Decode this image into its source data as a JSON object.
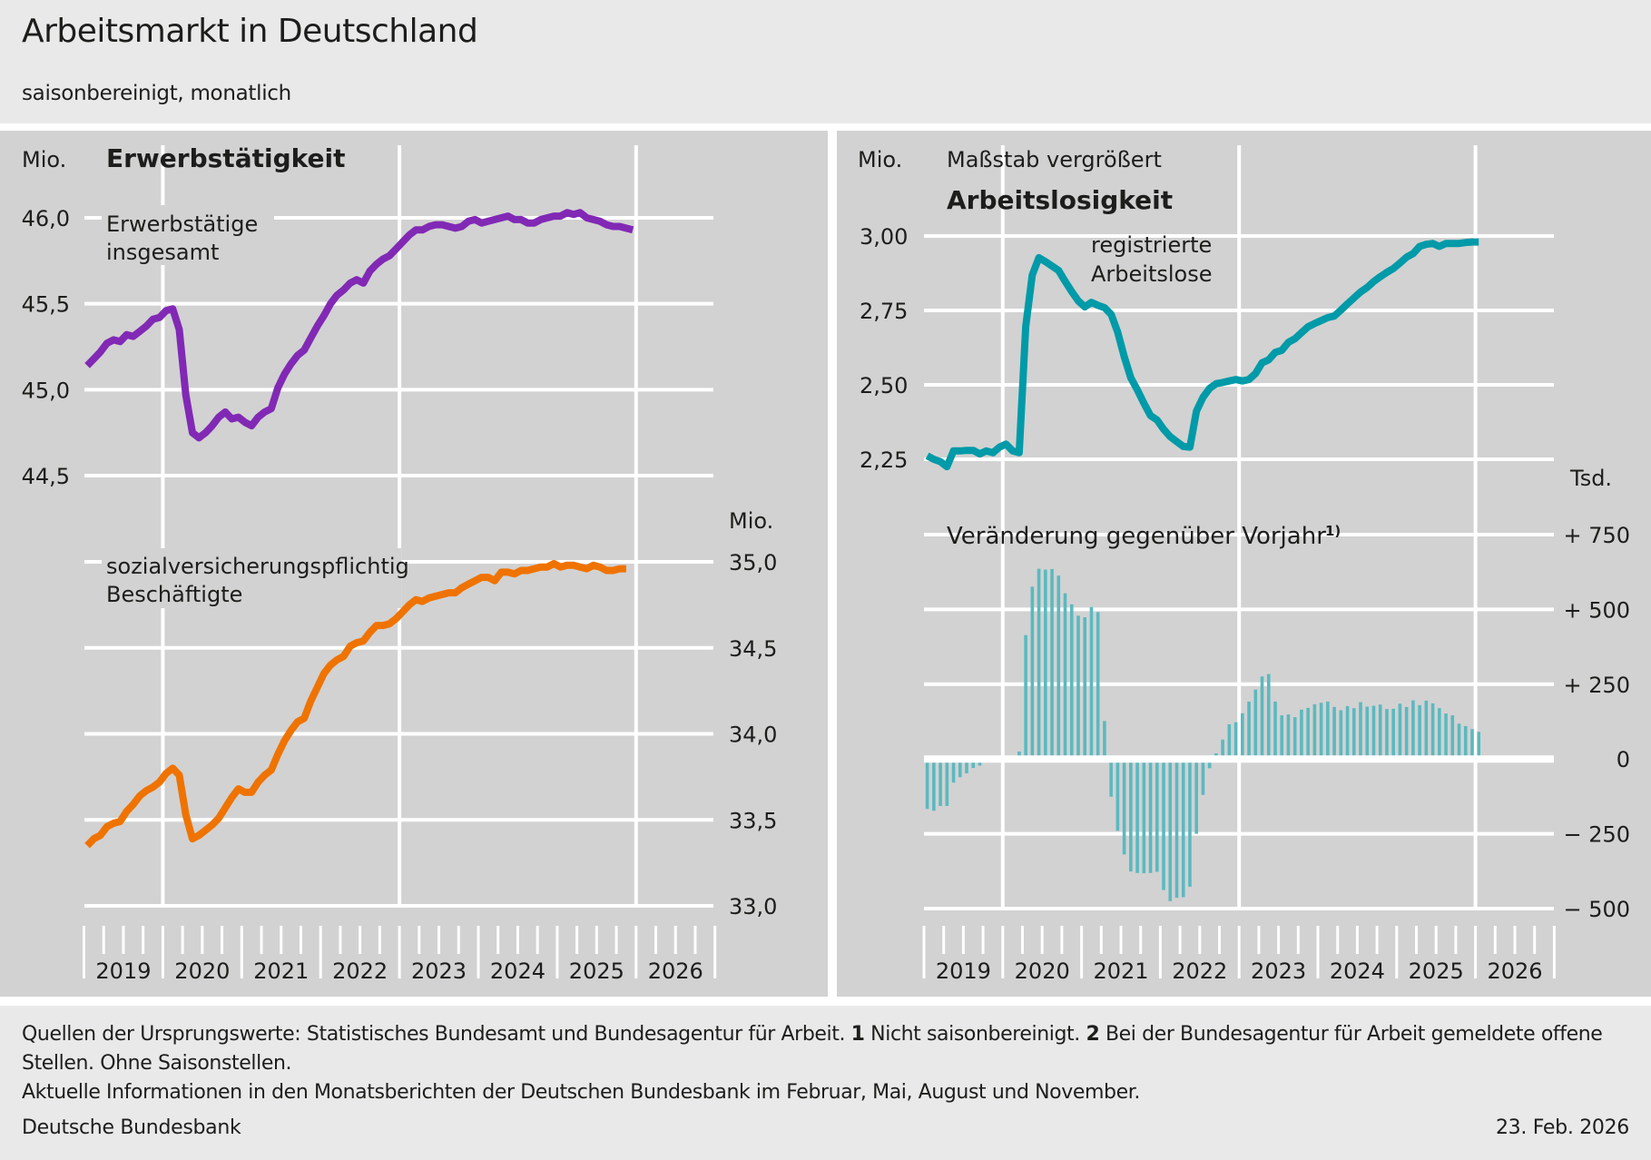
{
  "header": {
    "title": "Arbeitsmarkt in Deutschland",
    "subtitle": "saisonbereinigt, monatlich"
  },
  "footer": {
    "sources": "Quellen der Ursprungswerte: Statistisches Bundesamt und Bundesagentur für Arbeit.",
    "note1_num": "1",
    "note1_text": "Nicht saisonbereinigt.",
    "note2_num": "2",
    "note2_text": "Bei der Bundesagentur für Arbeit gemeldete offene Stellen. Ohne Saisonstellen.",
    "info": "Aktuelle Informationen in den Monatsberichten der Deutschen Bundesbank im Februar, Mai, August und November.",
    "publisher": "Deutsche Bundesbank",
    "date": "23. Feb. 2026"
  },
  "colors": {
    "employment": "#8129b5",
    "social_insurance": "#ef7300",
    "unemployment": "#009aa8",
    "change_bars": "#5bb9c0",
    "grid": "#ffffff",
    "panel_bg": "#d2d2d2",
    "page_bg": "#e9e9e9"
  },
  "chart_data": [
    {
      "id": "erwerbstaetige",
      "type": "line",
      "panel_title": "Erwerbstätigkeit",
      "unit": "Mio.",
      "series_label": [
        "Erwerbstätige",
        "insgesamt"
      ],
      "x_start": "2019-01",
      "x_categories": [
        "2019",
        "2020",
        "2021",
        "2022",
        "2023",
        "2024",
        "2025",
        "2026"
      ],
      "ylim": [
        44.5,
        46.0
      ],
      "yticks": [
        {
          "v": 46.0,
          "label": "46,0"
        },
        {
          "v": 45.5,
          "label": "45,5"
        },
        {
          "v": 45.0,
          "label": "45,0"
        },
        {
          "v": 44.5,
          "label": "44,5"
        }
      ],
      "values": [
        45.14,
        45.18,
        45.22,
        45.27,
        45.29,
        45.28,
        45.32,
        45.31,
        45.34,
        45.37,
        45.41,
        45.42,
        45.46,
        45.47,
        45.35,
        44.97,
        44.75,
        44.72,
        44.75,
        44.79,
        44.84,
        44.87,
        44.83,
        44.84,
        44.81,
        44.79,
        44.84,
        44.87,
        44.89,
        45.01,
        45.09,
        45.15,
        45.2,
        45.23,
        45.3,
        45.37,
        45.43,
        45.5,
        45.55,
        45.58,
        45.62,
        45.64,
        45.62,
        45.69,
        45.73,
        45.76,
        45.78,
        45.82,
        45.86,
        45.9,
        45.93,
        45.93,
        45.95,
        45.96,
        45.96,
        45.95,
        45.94,
        45.95,
        45.98,
        45.99,
        45.97,
        45.98,
        45.99,
        46.0,
        46.01,
        45.99,
        45.99,
        45.97,
        45.97,
        45.99,
        46.0,
        46.01,
        46.01,
        46.03,
        46.02,
        46.03,
        46.0,
        45.99,
        45.98,
        45.96,
        45.95,
        45.95,
        45.94,
        45.93
      ]
    },
    {
      "id": "svb",
      "type": "line",
      "unit": "Mio.",
      "series_label": [
        "sozialversicherungspflichtig",
        "Beschäftigte"
      ],
      "x_start": "2019-01",
      "ylim": [
        33.0,
        35.0
      ],
      "yticks": [
        {
          "v": 35.0,
          "label": "35,0"
        },
        {
          "v": 34.5,
          "label": "34,5"
        },
        {
          "v": 34.0,
          "label": "34,0"
        },
        {
          "v": 33.5,
          "label": "33,5"
        },
        {
          "v": 33.0,
          "label": "33,0"
        }
      ],
      "values": [
        33.35,
        33.39,
        33.41,
        33.46,
        33.48,
        33.49,
        33.55,
        33.59,
        33.64,
        33.67,
        33.69,
        33.72,
        33.77,
        33.8,
        33.76,
        33.53,
        33.39,
        33.41,
        33.44,
        33.47,
        33.51,
        33.57,
        33.63,
        33.68,
        33.66,
        33.66,
        33.72,
        33.76,
        33.79,
        33.88,
        33.96,
        34.02,
        34.07,
        34.09,
        34.19,
        34.27,
        34.35,
        34.4,
        34.43,
        34.45,
        34.51,
        34.53,
        34.54,
        34.59,
        34.63,
        34.63,
        34.64,
        34.67,
        34.71,
        34.75,
        34.78,
        34.77,
        34.79,
        34.8,
        34.81,
        34.82,
        34.82,
        34.85,
        34.87,
        34.89,
        34.91,
        34.91,
        34.89,
        34.94,
        34.94,
        34.93,
        34.95,
        34.95,
        34.96,
        34.97,
        34.97,
        34.99,
        34.97,
        34.98,
        34.98,
        34.97,
        34.96,
        34.98,
        34.97,
        34.95,
        34.95,
        34.96,
        34.96
      ]
    },
    {
      "id": "arbeitslose",
      "type": "line",
      "panel_title": "Arbeitslosigkeit",
      "unit": "Mio.",
      "scale_note": "Maßstab vergrößert",
      "series_label": [
        "registrierte",
        "Arbeitslose"
      ],
      "x_start": "2019-01",
      "x_categories": [
        "2019",
        "2020",
        "2021",
        "2022",
        "2023",
        "2024",
        "2025",
        "2026"
      ],
      "ylim": [
        2.25,
        3.0
      ],
      "yticks": [
        {
          "v": 3.0,
          "label": "3,00"
        },
        {
          "v": 2.75,
          "label": "2,75"
        },
        {
          "v": 2.5,
          "label": "2,50"
        },
        {
          "v": 2.25,
          "label": "2,25"
        }
      ],
      "values": [
        2.262,
        2.25,
        2.242,
        2.225,
        2.278,
        2.278,
        2.28,
        2.28,
        2.268,
        2.278,
        2.272,
        2.291,
        2.301,
        2.278,
        2.272,
        2.696,
        2.869,
        2.927,
        2.914,
        2.899,
        2.884,
        2.848,
        2.813,
        2.782,
        2.762,
        2.777,
        2.767,
        2.759,
        2.737,
        2.677,
        2.595,
        2.524,
        2.483,
        2.438,
        2.397,
        2.382,
        2.351,
        2.326,
        2.309,
        2.293,
        2.291,
        2.412,
        2.458,
        2.488,
        2.504,
        2.508,
        2.513,
        2.518,
        2.513,
        2.518,
        2.538,
        2.574,
        2.584,
        2.609,
        2.616,
        2.643,
        2.655,
        2.675,
        2.695,
        2.706,
        2.716,
        2.726,
        2.731,
        2.751,
        2.772,
        2.792,
        2.812,
        2.827,
        2.847,
        2.863,
        2.878,
        2.891,
        2.909,
        2.929,
        2.941,
        2.965,
        2.972,
        2.975,
        2.965,
        2.975,
        2.975,
        2.975,
        2.978,
        2.98,
        2.98
      ]
    },
    {
      "id": "veraenderung",
      "type": "bar",
      "title": "Veränderung gegenüber Vorjahr",
      "footnote_marker": "1)",
      "unit": "Tsd.",
      "x_start": "2019-01",
      "ylim": [
        -500,
        750
      ],
      "yticks": [
        {
          "v": 750,
          "label": "+ 750"
        },
        {
          "v": 500,
          "label": "+ 500"
        },
        {
          "v": 250,
          "label": "+ 250"
        },
        {
          "v": 0,
          "label": "0"
        },
        {
          "v": -250,
          "label": "− 250"
        },
        {
          "v": -500,
          "label": "− 500"
        }
      ],
      "values": [
        -167,
        -173,
        -157,
        -157,
        -79,
        -61,
        -48,
        -30,
        -22,
        0,
        -3,
        6,
        8,
        10,
        25,
        414,
        576,
        636,
        633,
        635,
        613,
        554,
        517,
        479,
        474,
        508,
        491,
        127,
        -126,
        -240,
        -319,
        -376,
        -381,
        -382,
        -381,
        -377,
        -438,
        -475,
        -464,
        -462,
        -427,
        -250,
        -120,
        -31,
        19,
        65,
        116,
        123,
        153,
        192,
        232,
        276,
        284,
        192,
        146,
        149,
        140,
        165,
        171,
        183,
        188,
        192,
        174,
        163,
        177,
        170,
        190,
        175,
        178,
        182,
        167,
        168,
        185,
        174,
        196,
        180,
        195,
        186,
        170,
        152,
        146,
        118,
        110,
        100,
        91
      ]
    }
  ]
}
